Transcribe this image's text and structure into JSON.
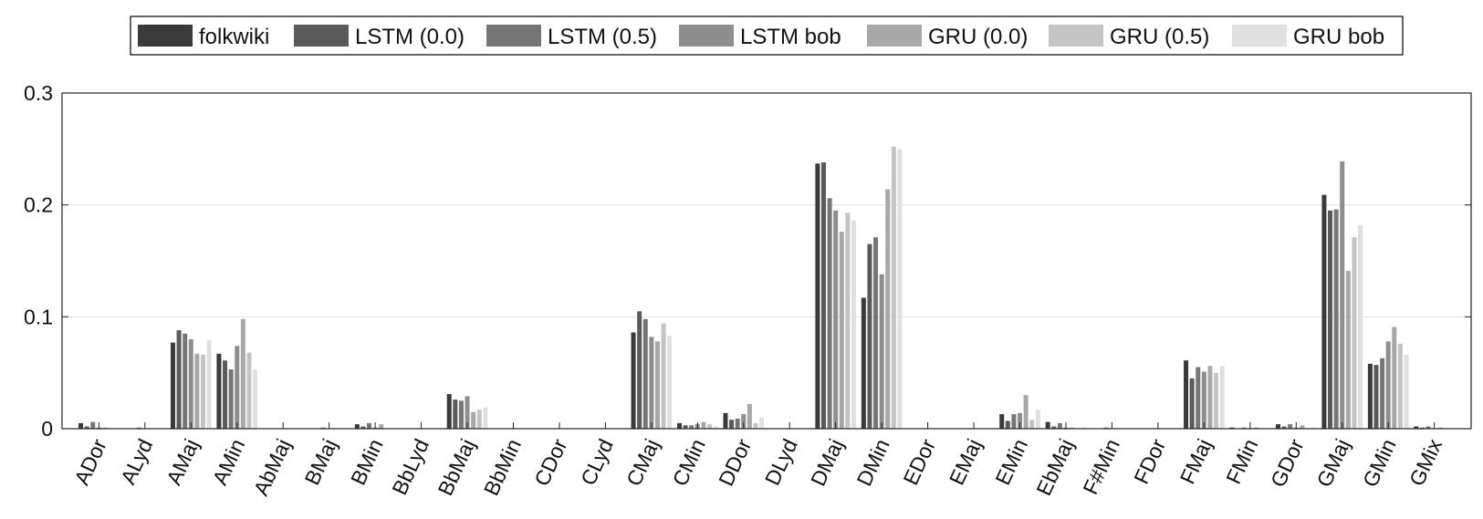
{
  "chart_data": {
    "type": "bar",
    "title": "",
    "xlabel": "",
    "ylabel": "",
    "ylim": [
      0,
      0.3
    ],
    "yticks": [
      "0",
      "0.1",
      "0.2",
      "0.3"
    ],
    "ytick_values": [
      0,
      0.1,
      0.2,
      0.3
    ],
    "grid": "horizontal",
    "legend_position": "top",
    "categories": [
      "ADor",
      "ALyd",
      "AMaj",
      "AMin",
      "AbMaj",
      "BMaj",
      "BMin",
      "BbLyd",
      "BbMaj",
      "BbMin",
      "CDor",
      "CLyd",
      "CMaj",
      "CMin",
      "DDor",
      "DLyd",
      "DMaj",
      "DMin",
      "EDor",
      "EMaj",
      "EMin",
      "EbMaj",
      "F#Min",
      "FDor",
      "FMaj",
      "FMin",
      "GDor",
      "GMaj",
      "GMin",
      "GMix"
    ],
    "colors": [
      "#3a3a3a",
      "#5a5a5a",
      "#767676",
      "#8e8e8e",
      "#a8a8a8",
      "#c4c4c4",
      "#e0e0e0"
    ],
    "series": [
      {
        "name": "folkwiki",
        "values": [
          0.005,
          0,
          0.077,
          0.067,
          0,
          0,
          0.004,
          0,
          0.031,
          0,
          0,
          0,
          0.086,
          0.005,
          0.014,
          0,
          0.237,
          0.117,
          0,
          0,
          0.013,
          0.006,
          0,
          0,
          0.061,
          0.001,
          0.004,
          0.209,
          0.058,
          0.002
        ]
      },
      {
        "name": "LSTM (0.0)",
        "values": [
          0.002,
          0,
          0.088,
          0.061,
          0,
          0,
          0.002,
          0,
          0.026,
          0,
          0,
          0,
          0.105,
          0.003,
          0.008,
          0,
          0.238,
          0.165,
          0,
          0,
          0.007,
          0.002,
          0,
          0,
          0.045,
          0,
          0.002,
          0.195,
          0.057,
          0.001
        ]
      },
      {
        "name": "LSTM (0.5)",
        "values": [
          0.006,
          0.001,
          0.085,
          0.053,
          0,
          0.001,
          0.005,
          0,
          0.025,
          0,
          0,
          0,
          0.098,
          0.003,
          0.009,
          0,
          0.206,
          0.171,
          0,
          0,
          0.013,
          0.005,
          0.001,
          0,
          0.055,
          0.001,
          0.004,
          0.196,
          0.063,
          0.002
        ]
      },
      {
        "name": "LSTM bob",
        "values": [
          0.001,
          0,
          0.08,
          0.074,
          0,
          0,
          0.001,
          0,
          0.029,
          0,
          0,
          0,
          0.082,
          0.004,
          0.013,
          0,
          0.195,
          0.138,
          0,
          0,
          0.014,
          0.001,
          0,
          0,
          0.051,
          0,
          0.001,
          0.239,
          0.078,
          0
        ]
      },
      {
        "name": "GRU (0.0)",
        "values": [
          0.001,
          0,
          0.067,
          0.098,
          0,
          0,
          0.004,
          0,
          0.015,
          0,
          0,
          0,
          0.078,
          0.006,
          0.022,
          0,
          0.176,
          0.214,
          0,
          0,
          0.03,
          0.001,
          0,
          0,
          0.056,
          0.001,
          0.003,
          0.141,
          0.091,
          0.001
        ]
      },
      {
        "name": "GRU (0.5)",
        "values": [
          0,
          0,
          0.066,
          0.068,
          0,
          0,
          0,
          0,
          0.017,
          0,
          0,
          0,
          0.094,
          0.004,
          0.005,
          0,
          0.193,
          0.252,
          0,
          0,
          0.008,
          0,
          0,
          0,
          0.05,
          0,
          0,
          0.171,
          0.076,
          0
        ]
      },
      {
        "name": "GRU bob",
        "values": [
          0,
          0,
          0.079,
          0.053,
          0,
          0,
          0,
          0,
          0.019,
          0,
          0,
          0,
          0.083,
          0.002,
          0.01,
          0,
          0.186,
          0.25,
          0,
          0,
          0.017,
          0.001,
          0,
          0,
          0.056,
          0,
          0.001,
          0.182,
          0.066,
          0
        ]
      }
    ]
  }
}
